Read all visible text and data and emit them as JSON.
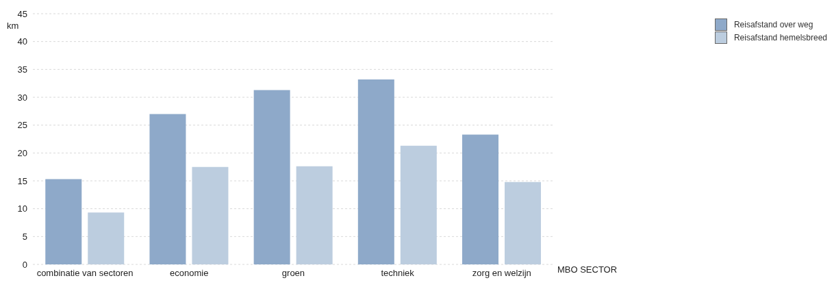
{
  "chart_data": {
    "type": "bar",
    "xlabel": "MBO SECTOR",
    "ylabel": "km",
    "categories": [
      "combinatie van sectoren",
      "economie",
      "groen",
      "techniek",
      "zorg en welzijn"
    ],
    "series": [
      {
        "name": "Reisafstand over weg",
        "color": "#8ea9c9",
        "values": [
          15.3,
          27.0,
          31.3,
          33.2,
          23.3
        ]
      },
      {
        "name": "Reisafstand hemelsbreed",
        "color": "#bccddf",
        "values": [
          9.3,
          17.5,
          17.6,
          21.3,
          14.8
        ]
      }
    ],
    "ylim": [
      0,
      45
    ],
    "yticks": [
      0,
      5,
      10,
      15,
      20,
      25,
      30,
      35,
      40,
      45
    ],
    "grid": "y",
    "legend": "top right"
  }
}
